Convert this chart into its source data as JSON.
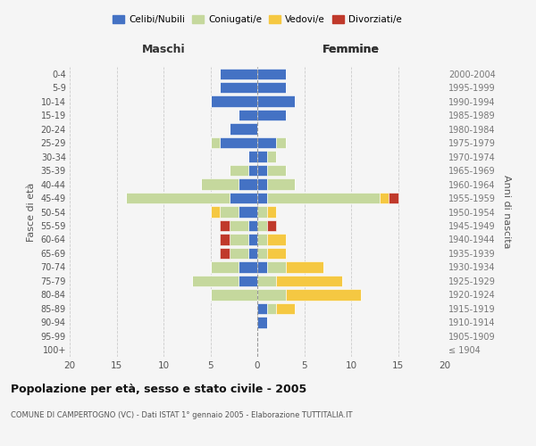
{
  "age_groups": [
    "100+",
    "95-99",
    "90-94",
    "85-89",
    "80-84",
    "75-79",
    "70-74",
    "65-69",
    "60-64",
    "55-59",
    "50-54",
    "45-49",
    "40-44",
    "35-39",
    "30-34",
    "25-29",
    "20-24",
    "15-19",
    "10-14",
    "5-9",
    "0-4"
  ],
  "birth_years": [
    "≤ 1904",
    "1905-1909",
    "1910-1914",
    "1915-1919",
    "1920-1924",
    "1925-1929",
    "1930-1934",
    "1935-1939",
    "1940-1944",
    "1945-1949",
    "1950-1954",
    "1955-1959",
    "1960-1964",
    "1965-1969",
    "1970-1974",
    "1975-1979",
    "1980-1984",
    "1985-1989",
    "1990-1994",
    "1995-1999",
    "2000-2004"
  ],
  "colors": {
    "celibi": "#4472c4",
    "coniugati": "#c5d89d",
    "vedovi": "#f5c842",
    "divorziati": "#c0392b"
  },
  "males": {
    "celibi": [
      0,
      0,
      0,
      0,
      0,
      2,
      2,
      1,
      1,
      1,
      2,
      3,
      2,
      1,
      1,
      4,
      3,
      2,
      5,
      4,
      4
    ],
    "coniugati": [
      0,
      0,
      0,
      0,
      5,
      5,
      3,
      2,
      2,
      2,
      2,
      11,
      4,
      2,
      0,
      1,
      0,
      0,
      0,
      0,
      0
    ],
    "vedovi": [
      0,
      0,
      0,
      0,
      0,
      0,
      0,
      0,
      0,
      0,
      1,
      0,
      0,
      0,
      0,
      0,
      0,
      0,
      0,
      0,
      0
    ],
    "divorziati": [
      0,
      0,
      0,
      0,
      0,
      0,
      0,
      1,
      1,
      1,
      0,
      0,
      0,
      0,
      0,
      0,
      0,
      0,
      0,
      0,
      0
    ]
  },
  "females": {
    "celibi": [
      0,
      0,
      1,
      1,
      0,
      0,
      1,
      0,
      0,
      0,
      0,
      1,
      1,
      1,
      1,
      2,
      0,
      3,
      4,
      3,
      3
    ],
    "coniugati": [
      0,
      0,
      0,
      1,
      3,
      2,
      2,
      1,
      1,
      1,
      1,
      12,
      3,
      2,
      1,
      1,
      0,
      0,
      0,
      0,
      0
    ],
    "vedovi": [
      0,
      0,
      0,
      2,
      8,
      7,
      4,
      2,
      2,
      0,
      1,
      1,
      0,
      0,
      0,
      0,
      0,
      0,
      0,
      0,
      0
    ],
    "divorziati": [
      0,
      0,
      0,
      0,
      0,
      0,
      0,
      0,
      0,
      1,
      0,
      1,
      0,
      0,
      0,
      0,
      0,
      0,
      0,
      0,
      0
    ]
  },
  "xlim": 20,
  "title": "Popolazione per età, sesso e stato civile - 2005",
  "subtitle": "COMUNE DI CAMPERTOGNO (VC) - Dati ISTAT 1° gennaio 2005 - Elaborazione TUTTITALIA.IT",
  "ylabel_left": "Fasce di età",
  "ylabel_right": "Anni di nascita",
  "xlabel_left": "Maschi",
  "xlabel_right": "Femmine",
  "legend_labels": [
    "Celibi/Nubili",
    "Coniugati/e",
    "Vedovi/e",
    "Divorziati/e"
  ],
  "bg_color": "#f5f5f5"
}
